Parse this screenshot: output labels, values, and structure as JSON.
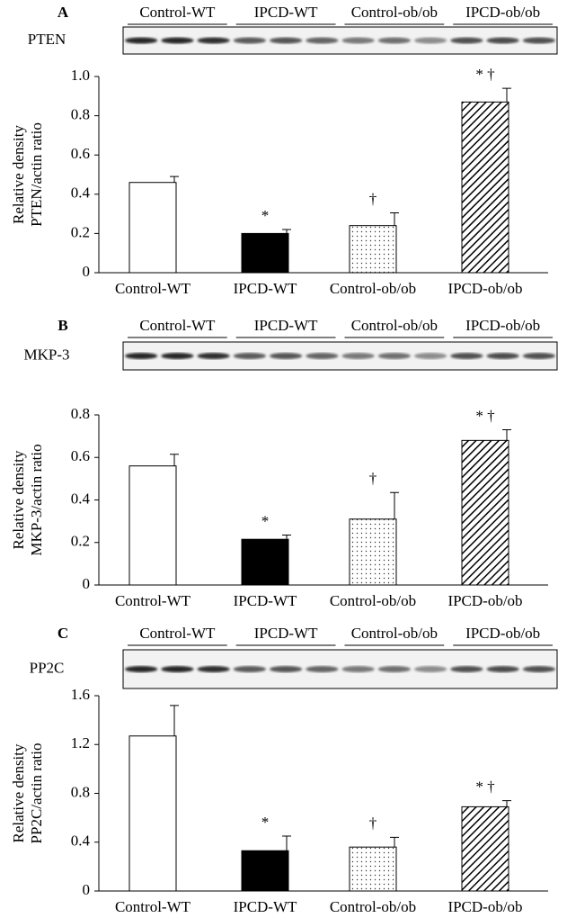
{
  "chart_data": [
    {
      "type": "bar",
      "panel": "A",
      "blot": "PTEN",
      "blot_groups": [
        "Control-WT",
        "IPCD-WT",
        "Control-ob/ob",
        "IPCD-ob/ob"
      ],
      "ylabel": [
        "Relative density",
        "PTEN/actin ratio"
      ],
      "categories": [
        "Control-WT",
        "IPCD-WT",
        "Control-ob/ob",
        "IPCD-ob/ob"
      ],
      "values": [
        0.46,
        0.2,
        0.24,
        0.87
      ],
      "errors": [
        0.03,
        0.02,
        0.065,
        0.07
      ],
      "annotations": [
        null,
        "*",
        "†",
        "* †"
      ],
      "bar_styles": [
        "open",
        "solid",
        "dots",
        "hatch"
      ],
      "ylim": [
        0,
        1
      ],
      "yticks": [
        0,
        0.2,
        0.4,
        0.6,
        0.8,
        {
          "value": 1,
          "label": "1.0"
        }
      ]
    },
    {
      "type": "bar",
      "panel": "B",
      "blot": "MKP-3",
      "blot_groups": [
        "Control-WT",
        "IPCD-WT",
        "Control-ob/ob",
        "IPCD-ob/ob"
      ],
      "ylabel": [
        "Relative density",
        "MKP-3/actin ratio"
      ],
      "categories": [
        "Control-WT",
        "IPCD-WT",
        "Control-ob/ob",
        "IPCD-ob/ob"
      ],
      "values": [
        0.56,
        0.215,
        0.31,
        0.68
      ],
      "errors": [
        0.055,
        0.02,
        0.125,
        0.05
      ],
      "annotations": [
        null,
        "*",
        "†",
        "* †"
      ],
      "bar_styles": [
        "open",
        "solid",
        "dots",
        "hatch"
      ],
      "ylim": [
        0,
        0.8
      ],
      "yticks": [
        0,
        0.2,
        0.4,
        0.6,
        0.8
      ]
    },
    {
      "type": "bar",
      "panel": "C",
      "blot": "PP2C",
      "blot_groups": [
        "Control-WT",
        "IPCD-WT",
        "Control-ob/ob",
        "IPCD-ob/ob"
      ],
      "ylabel": [
        "Relative density",
        "PP2C/actin ratio"
      ],
      "categories": [
        "Control-WT",
        "IPCD-WT",
        "Control-ob/ob",
        "IPCD-ob/ob"
      ],
      "values": [
        1.27,
        0.33,
        0.36,
        0.69
      ],
      "errors": [
        0.25,
        0.12,
        0.08,
        0.05
      ],
      "annotations": [
        null,
        "*",
        "†",
        "* †"
      ],
      "bar_styles": [
        "open",
        "solid",
        "dots",
        "hatch"
      ],
      "ylim": [
        0,
        1.6
      ],
      "yticks": [
        0,
        0.4,
        0.8,
        1.2,
        1.6
      ]
    }
  ]
}
